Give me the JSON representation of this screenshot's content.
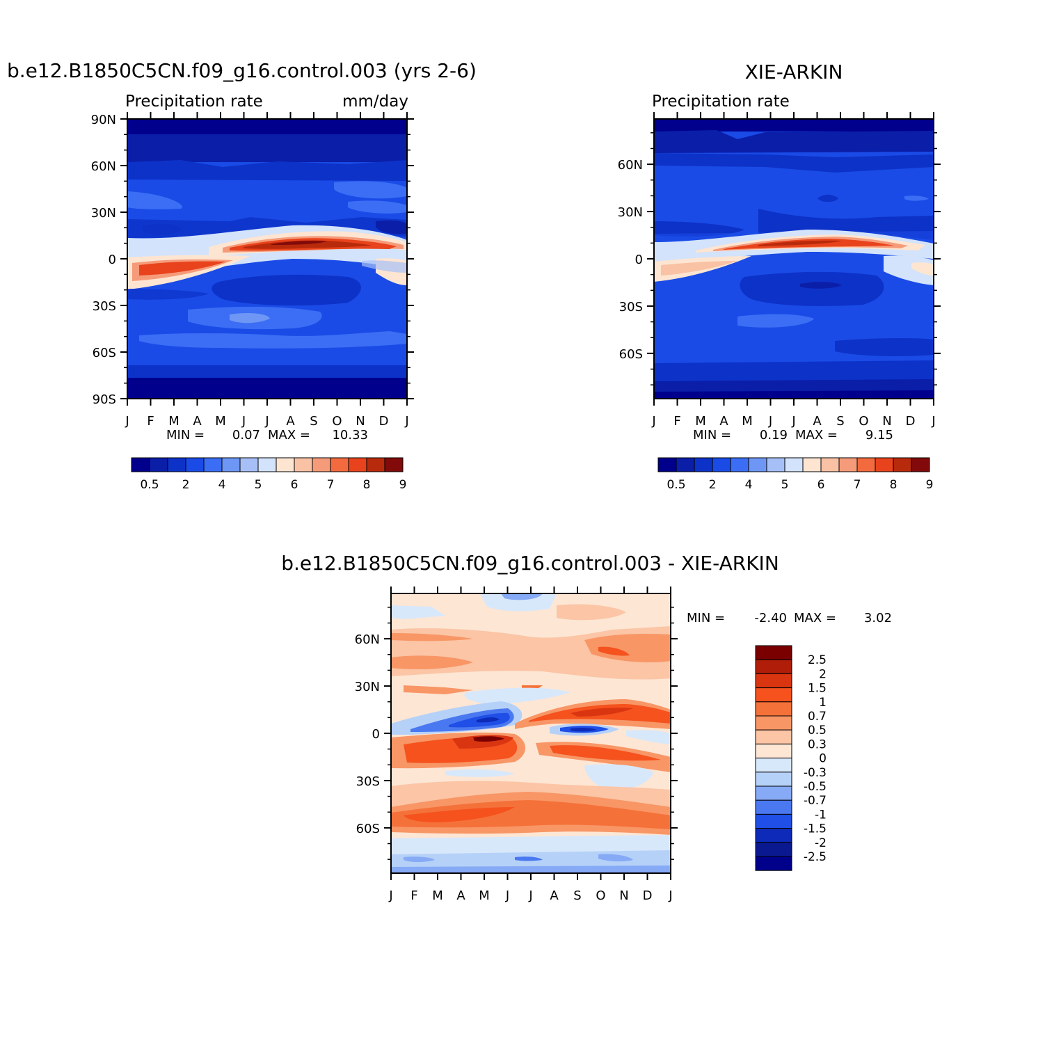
{
  "figure": {
    "panel1_title": "b.e12.B1850C5CN.f09_g16.control.003 (yrs 2-6)",
    "panel2_title": "XIE-ARKIN",
    "panel3_title": "b.e12.B1850C5CN.f09_g16.control.003 - XIE-ARKIN"
  },
  "chart_data": [
    {
      "type": "heatmap",
      "title": "b.e12.B1850C5CN.f09_g16.control.003 (yrs 2-6)",
      "left_subtitle": "Precipitation rate",
      "right_subtitle": "mm/day",
      "x_tick_labels": [
        "J",
        "F",
        "M",
        "A",
        "M",
        "J",
        "J",
        "A",
        "S",
        "O",
        "N",
        "D",
        "J"
      ],
      "y_tick_labels": [
        "90N",
        "60N",
        "30N",
        "0",
        "30S",
        "60S",
        "90S"
      ],
      "y_tick_values": [
        90,
        60,
        30,
        0,
        -30,
        -60,
        -90
      ],
      "ylim": [
        -90,
        90
      ],
      "stats": {
        "min_label": "MIN =",
        "min": "0.07",
        "max_label": "MAX =",
        "max": "10.33"
      },
      "colorbar": {
        "orientation": "horizontal",
        "labels": [
          "0.5",
          "2",
          "4",
          "5",
          "6",
          "7",
          "8",
          "9"
        ],
        "colors": [
          "#00008c",
          "#0a1ea8",
          "#0d32c8",
          "#1a4be6",
          "#3b6ef5",
          "#6e96f5",
          "#a6c0f7",
          "#d2e3fb",
          "#fde5d2",
          "#f9c2a4",
          "#f59b7a",
          "#f26a3e",
          "#e8431c",
          "#b82a0c",
          "#820a0a"
        ]
      },
      "description_values": {
        "itcz_peak_month": "A",
        "itcz_peak_lat": 8,
        "field_max": 10.33,
        "field_min": 0.07
      }
    },
    {
      "type": "heatmap",
      "title": "XIE-ARKIN",
      "left_subtitle": "Precipitation rate",
      "x_tick_labels": [
        "J",
        "F",
        "M",
        "A",
        "M",
        "J",
        "J",
        "A",
        "S",
        "O",
        "N",
        "D",
        "J"
      ],
      "y_tick_labels": [
        "60N",
        "30N",
        "0",
        "30S",
        "60S"
      ],
      "y_tick_values": [
        60,
        30,
        0,
        -30,
        -60
      ],
      "ylim": [
        -88.75,
        88.75
      ],
      "stats": {
        "min_label": "MIN =",
        "min": "0.19",
        "max_label": "MAX =",
        "max": "9.15"
      },
      "colorbar": {
        "orientation": "horizontal",
        "labels": [
          "0.5",
          "2",
          "4",
          "5",
          "6",
          "7",
          "8",
          "9"
        ],
        "colors": [
          "#00008c",
          "#0a1ea8",
          "#0d32c8",
          "#1a4be6",
          "#3b6ef5",
          "#6e96f5",
          "#a6c0f7",
          "#d2e3fb",
          "#fde5d2",
          "#f9c2a4",
          "#f59b7a",
          "#f26a3e",
          "#e8431c",
          "#b82a0c",
          "#820a0a"
        ]
      },
      "description_values": {
        "field_max": 9.15,
        "field_min": 0.19
      }
    },
    {
      "type": "heatmap",
      "title": "b.e12.B1850C5CN.f09_g16.control.003 - XIE-ARKIN",
      "x_tick_labels": [
        "J",
        "F",
        "M",
        "A",
        "M",
        "J",
        "J",
        "A",
        "S",
        "O",
        "N",
        "D",
        "J"
      ],
      "y_tick_labels": [
        "60N",
        "30N",
        "0",
        "30S",
        "60S"
      ],
      "y_tick_values": [
        60,
        30,
        0,
        -30,
        -60
      ],
      "ylim": [
        -88.75,
        88.75
      ],
      "stats": {
        "min_label": "MIN =",
        "min": "-2.40",
        "max_label": "MAX =",
        "max": "3.02"
      },
      "colorbar": {
        "orientation": "vertical",
        "labels": [
          "2.5",
          "2",
          "1.5",
          "1",
          "0.7",
          "0.5",
          "0.3",
          "0",
          "-0.3",
          "-0.5",
          "-0.7",
          "-1",
          "-1.5",
          "-2",
          "-2.5"
        ],
        "colors": [
          "#7a0000",
          "#b01e0a",
          "#d93511",
          "#f5521e",
          "#f5713a",
          "#f89666",
          "#fbc5a6",
          "#fde6d4",
          "#d8e8fb",
          "#b6d1f8",
          "#86aaf5",
          "#4a78f0",
          "#1f4fe6",
          "#0d2ab8",
          "#0a1990",
          "#00008a"
        ]
      }
    }
  ]
}
